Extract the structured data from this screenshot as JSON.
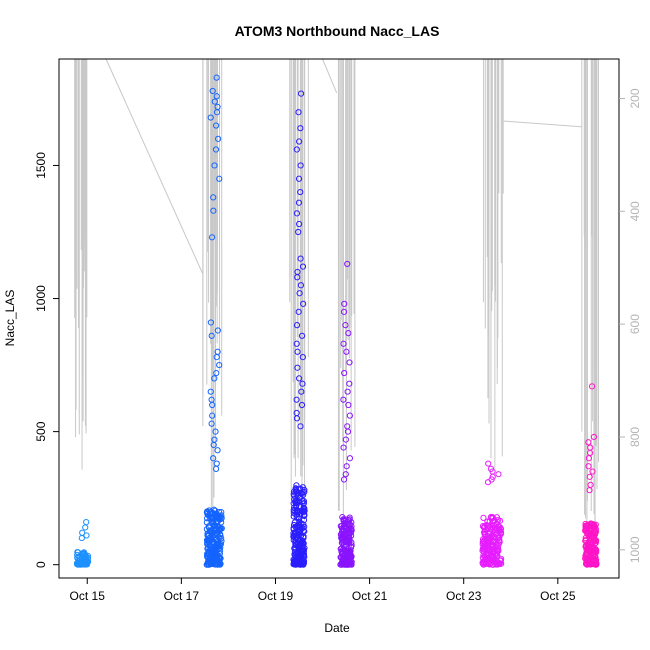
{
  "chart_data": {
    "type": "scatter",
    "title": "ATOM3 Northbound Nacc_LAS",
    "xlabel": "Date",
    "ylabel": "Nacc_LAS",
    "x_ticks": [
      "Oct 15",
      "Oct 17",
      "Oct 19",
      "Oct 21",
      "Oct 23",
      "Oct 25"
    ],
    "x_tick_days": [
      15,
      17,
      19,
      21,
      23,
      25
    ],
    "xlim_days": [
      14.4,
      26.3
    ],
    "y_ticks": [
      0,
      500,
      1000,
      1500
    ],
    "ylim": [
      -50,
      1900
    ],
    "y2_ticks": [
      200,
      400,
      600,
      800,
      1000
    ],
    "y2lim_reversed": [
      1050,
      130
    ],
    "y2_color": "#b4b4b4",
    "grid": false,
    "legend": "none",
    "series": [
      {
        "points_color": "#1e90ff",
        "clusters": [
          {
            "day_start": 14.75,
            "day_end": 15.05,
            "y_base_max": 80,
            "y_peak": 160,
            "color": "#1e90ff",
            "high_points": [
              160,
              140,
              120,
              110,
              100
            ],
            "low_count": 70
          },
          {
            "day_start": 17.5,
            "day_end": 17.9,
            "y_base_max": 350,
            "y_peak": 1830,
            "color": "#1464ff",
            "high_points": [
              1830,
              1780,
              1760,
              1740,
              1720,
              1700,
              1680,
              1650,
              1600,
              1560,
              1500,
              1450,
              1380,
              1330,
              1230,
              910,
              880,
              860,
              800,
              780,
              750,
              720,
              700,
              650,
              620,
              600,
              560,
              530,
              500,
              470,
              450,
              430,
              400,
              380,
              360
            ],
            "low_count": 220
          },
          {
            "day_start": 19.35,
            "day_end": 19.65,
            "y_base_max": 500,
            "y_peak": 1770,
            "color": "#2a1eff",
            "high_points": [
              1770,
              1700,
              1640,
              1590,
              1560,
              1500,
              1450,
              1400,
              1360,
              1320,
              1280,
              1250,
              1150,
              1120,
              1100,
              1080,
              1050,
              1020,
              980,
              950,
              900,
              860,
              830,
              800,
              780,
              740,
              700,
              680,
              650,
              620,
              600,
              570,
              550,
              520
            ],
            "low_count": 220
          },
          {
            "day_start": 20.35,
            "day_end": 20.65,
            "y_base_max": 300,
            "y_peak": 1130,
            "color": "#8a14ff",
            "high_points": [
              1130,
              980,
              950,
              900,
              870,
              830,
              800,
              760,
              720,
              680,
              650,
              620,
              600,
              560,
              520,
              500,
              470,
              440,
              400,
              370,
              340,
              320
            ],
            "low_count": 180
          },
          {
            "day_start": 23.35,
            "day_end": 23.85,
            "y_base_max": 300,
            "y_peak": 380,
            "color": "#e61eff",
            "high_points": [
              380,
              360,
              350,
              340,
              330,
              320,
              310
            ],
            "low_count": 200
          },
          {
            "day_start": 25.55,
            "day_end": 25.85,
            "y_base_max": 260,
            "y_peak": 670,
            "color": "#ff14c8",
            "high_points": [
              670,
              480,
              460,
              440,
              420,
              400,
              370,
              350,
              330,
              300,
              280
            ],
            "low_count": 170
          }
        ]
      }
    ],
    "overlay_series": {
      "name": "",
      "color": "#c8c8c8",
      "axis": "right",
      "segments": [
        {
          "day_start": 14.7,
          "day_end": 15.0,
          "min_y2": 130,
          "max_y2": 860
        },
        {
          "day_start": 17.45,
          "day_end": 17.9,
          "min_y2": 130,
          "max_y2": 1000
        },
        {
          "day_start": 19.3,
          "day_end": 19.7,
          "min_y2": 130,
          "max_y2": 950
        },
        {
          "day_start": 20.3,
          "day_end": 20.7,
          "min_y2": 130,
          "max_y2": 1000
        },
        {
          "day_start": 23.4,
          "day_end": 23.85,
          "min_y2": 130,
          "max_y2": 870
        },
        {
          "day_start": 25.5,
          "day_end": 25.9,
          "min_y2": 130,
          "max_y2": 1000
        }
      ],
      "connectors": [
        {
          "from_day": 15.4,
          "from_y2": 130,
          "to_day": 17.45,
          "to_y2": 510
        },
        {
          "from_day": 20.0,
          "from_y2": 130,
          "to_day": 20.3,
          "to_y2": 190
        },
        {
          "from_day": 23.85,
          "from_y2": 240,
          "to_day": 25.5,
          "to_y2": 250
        }
      ]
    }
  }
}
